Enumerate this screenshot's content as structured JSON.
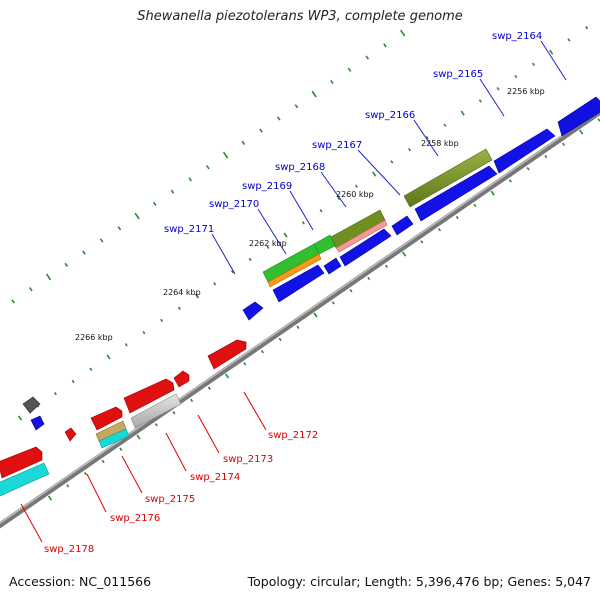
{
  "title": "Shewanella piezotolerans WP3, complete genome",
  "footer": {
    "accession": "Accession: NC_011566",
    "summary": "Topology: circular; Length: 5,396,476 bp; Genes: 5,047"
  },
  "colors": {
    "forward_label": "#0000cc",
    "reverse_label": "#dd0000",
    "backbone": "#8a8a8a",
    "tick": "#2a8a2a"
  },
  "kbp_ticks": [
    {
      "label": "2256 kbp"
    },
    {
      "label": "2258 kbp"
    },
    {
      "label": "2260 kbp"
    },
    {
      "label": "2262 kbp"
    },
    {
      "label": "2264 kbp"
    },
    {
      "label": "2266 kbp"
    }
  ],
  "forward_labels": [
    {
      "label": "swp_2164"
    },
    {
      "label": "swp_2165"
    },
    {
      "label": "swp_2166"
    },
    {
      "label": "swp_2167"
    },
    {
      "label": "swp_2168"
    },
    {
      "label": "swp_2169"
    },
    {
      "label": "swp_2170"
    },
    {
      "label": "swp_2171"
    }
  ],
  "reverse_labels": [
    {
      "label": "swp_2172"
    },
    {
      "label": "swp_2173"
    },
    {
      "label": "swp_2174"
    },
    {
      "label": "swp_2175"
    },
    {
      "label": "swp_2176"
    },
    {
      "label": "swp_2178"
    }
  ]
}
